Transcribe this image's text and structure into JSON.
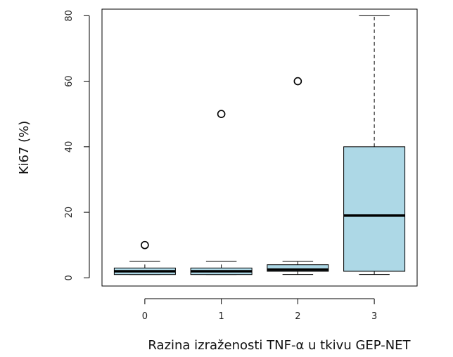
{
  "chart_data": {
    "type": "box",
    "title": "",
    "xlabel": "Razina izraženosti TNF-α u tkivu GEP-NET",
    "ylabel": "Ki67 (%)",
    "ylim": [
      -2.5,
      82
    ],
    "yticks": [
      0,
      20,
      40,
      60,
      80
    ],
    "categories": [
      "0",
      "1",
      "2",
      "3"
    ],
    "box_color": "#add8e6",
    "grid": false,
    "boxes": [
      {
        "category": "0",
        "whisker_low": 1,
        "q1": 1,
        "median": 2,
        "q3": 3,
        "whisker_high": 5,
        "outliers": [
          10
        ]
      },
      {
        "category": "1",
        "whisker_low": 1,
        "q1": 1,
        "median": 2,
        "q3": 3,
        "whisker_high": 5,
        "outliers": [
          50
        ]
      },
      {
        "category": "2",
        "whisker_low": 1,
        "q1": 2,
        "median": 2.5,
        "q3": 4,
        "whisker_high": 5,
        "outliers": [
          60
        ]
      },
      {
        "category": "3",
        "whisker_low": 1,
        "q1": 2,
        "median": 19,
        "q3": 40,
        "whisker_high": 80,
        "outliers": []
      }
    ]
  }
}
